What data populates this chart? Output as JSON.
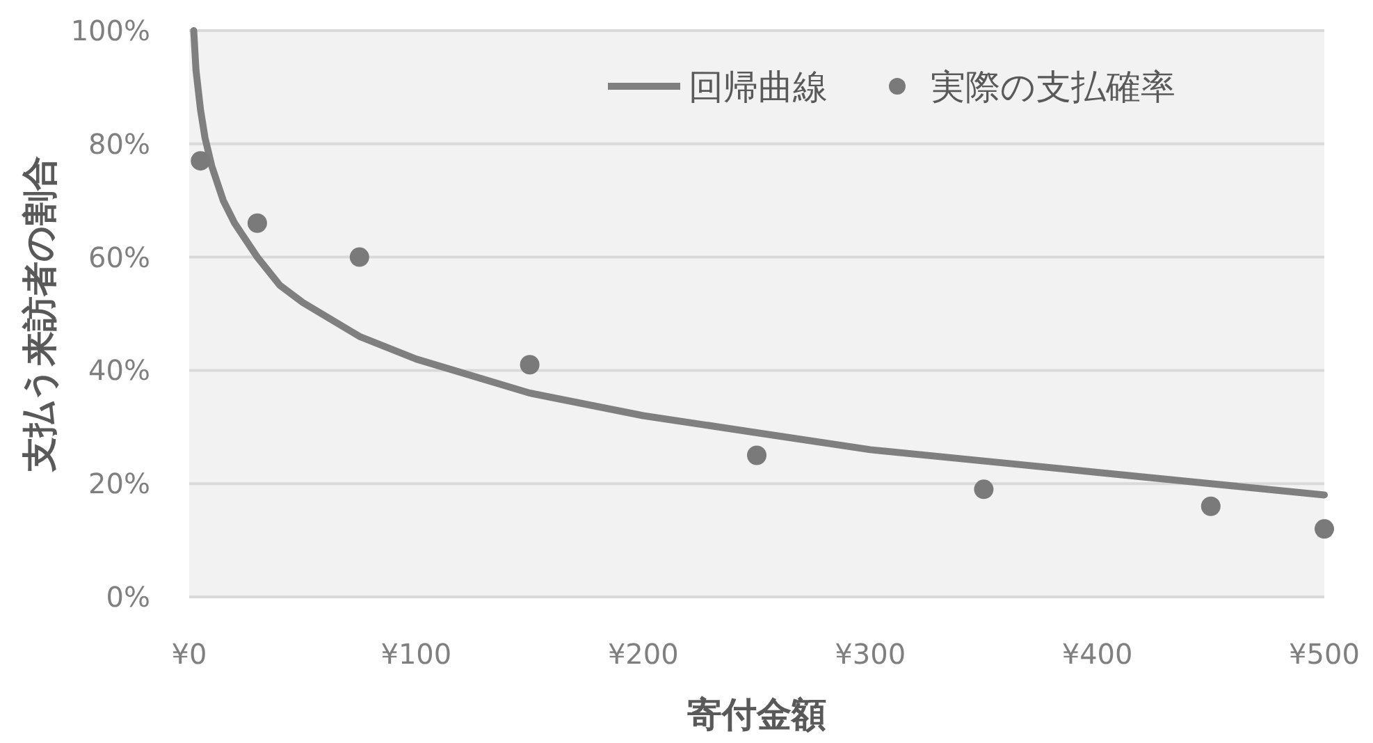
{
  "chart_data": {
    "type": "scatter",
    "xlabel": "寄付金額",
    "ylabel": "支払う来訪者の割合",
    "xlim": [
      0,
      500
    ],
    "xticks": [
      {
        "value": 0,
        "label": "¥0"
      },
      {
        "value": 100,
        "label": "¥100"
      },
      {
        "value": 200,
        "label": "¥200"
      },
      {
        "value": 300,
        "label": "¥300"
      },
      {
        "value": 400,
        "label": "¥400"
      },
      {
        "value": 500,
        "label": "¥500"
      }
    ],
    "ylim": [
      0,
      100
    ],
    "yticks": [
      {
        "value": 0,
        "label": "0%"
      },
      {
        "value": 20,
        "label": "20%"
      },
      {
        "value": 40,
        "label": "40%"
      },
      {
        "value": 60,
        "label": "60%"
      },
      {
        "value": 80,
        "label": "80%"
      },
      {
        "value": 100,
        "label": "100%"
      }
    ],
    "grid": "y",
    "legend": "top right",
    "series": [
      {
        "name": "回帰曲線",
        "type": "line",
        "color": "#7f7f7f",
        "marker": "none",
        "x": [
          2,
          3,
          5,
          7,
          10,
          15,
          20,
          30,
          40,
          50,
          75,
          100,
          150,
          200,
          250,
          300,
          350,
          400,
          450,
          500
        ],
        "values": [
          100,
          93,
          86,
          81,
          76,
          70,
          66,
          60,
          55,
          52,
          46,
          42,
          36,
          32,
          29,
          26,
          24,
          22,
          20,
          18
        ]
      },
      {
        "name": "実際の支払確率",
        "type": "scatter",
        "color": "#7a7a7a",
        "marker": "circle",
        "x": [
          5,
          30,
          75,
          150,
          250,
          350,
          450,
          500
        ],
        "values": [
          77,
          66,
          60,
          41,
          25,
          19,
          16,
          12
        ]
      }
    ]
  }
}
